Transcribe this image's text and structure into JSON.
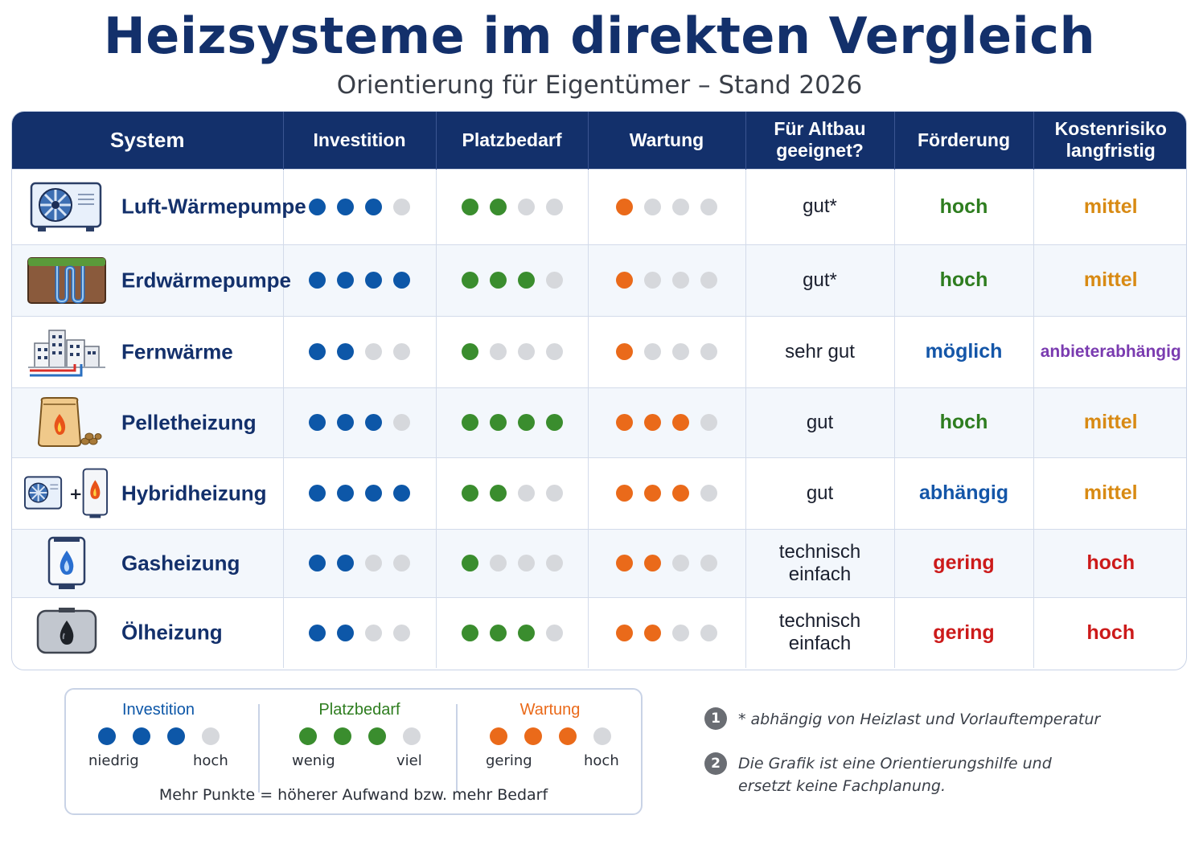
{
  "title": "Heizsysteme im direkten Vergleich",
  "subtitle": "Orientierung für Eigentümer – Stand 2026",
  "colors": {
    "header": "#13306b",
    "investition": "#0d57a8",
    "platzbedarf": "#3a8d2e",
    "wartung": "#ea6a1a",
    "inactive": "#d6d8dc",
    "hoch_green": "#2e7d1f",
    "mittel": "#d88a13",
    "moeglich": "#1456a8",
    "anbieter": "#7a3bb0",
    "red": "#cc1a1a"
  },
  "headers": {
    "system": "System",
    "investition": "Investition",
    "platzbedarf": "Platzbedarf",
    "wartung": "Wartung",
    "altbau": "Für Altbau geeignet?",
    "foerderung": "Förderung",
    "kostenrisiko": "Kostenrisiko langfristig"
  },
  "chart_data": {
    "type": "table",
    "dot_scale_max": 4,
    "rows": [
      {
        "system": "Luft-Wärmepumpe",
        "icon": "air-heat-pump-icon",
        "investition": 3,
        "platzbedarf": 2,
        "wartung": 1,
        "altbau": "gut*",
        "foerderung": "hoch",
        "foerderung_color": "#2e7d1f",
        "kostenrisiko": "mittel",
        "kostenrisiko_color": "#d88a13"
      },
      {
        "system": "Erdwärmepumpe",
        "icon": "ground-heat-pump-icon",
        "investition": 4,
        "platzbedarf": 3,
        "wartung": 1,
        "altbau": "gut*",
        "foerderung": "hoch",
        "foerderung_color": "#2e7d1f",
        "kostenrisiko": "mittel",
        "kostenrisiko_color": "#d88a13"
      },
      {
        "system": "Fernwärme",
        "icon": "district-heating-icon",
        "investition": 2,
        "platzbedarf": 1,
        "wartung": 1,
        "altbau": "sehr gut",
        "foerderung": "möglich",
        "foerderung_color": "#1456a8",
        "kostenrisiko": "anbieterabhängig",
        "kostenrisiko_color": "#7a3bb0"
      },
      {
        "system": "Pelletheizung",
        "icon": "pellet-heating-icon",
        "investition": 3,
        "platzbedarf": 4,
        "wartung": 3,
        "altbau": "gut",
        "foerderung": "hoch",
        "foerderung_color": "#2e7d1f",
        "kostenrisiko": "mittel",
        "kostenrisiko_color": "#d88a13"
      },
      {
        "system": "Hybridheizung",
        "icon": "hybrid-heating-icon",
        "investition": 4,
        "platzbedarf": 2,
        "wartung": 3,
        "altbau": "gut",
        "foerderung": "abhängig",
        "foerderung_color": "#1456a8",
        "kostenrisiko": "mittel",
        "kostenrisiko_color": "#d88a13"
      },
      {
        "system": "Gasheizung",
        "icon": "gas-heating-icon",
        "investition": 2,
        "platzbedarf": 1,
        "wartung": 2,
        "altbau": "technisch einfach",
        "foerderung": "gering",
        "foerderung_color": "#cc1a1a",
        "kostenrisiko": "hoch",
        "kostenrisiko_color": "#cc1a1a"
      },
      {
        "system": "Ölheizung",
        "icon": "oil-heating-icon",
        "investition": 2,
        "platzbedarf": 3,
        "wartung": 2,
        "altbau": "technisch einfach",
        "foerderung": "gering",
        "foerderung_color": "#cc1a1a",
        "kostenrisiko": "hoch",
        "kostenrisiko_color": "#cc1a1a"
      }
    ]
  },
  "legend": {
    "investition": {
      "title": "Investition",
      "low": "niedrig",
      "high": "hoch",
      "filled": 3
    },
    "platzbedarf": {
      "title": "Platzbedarf",
      "low": "wenig",
      "high": "viel",
      "filled": 3
    },
    "wartung": {
      "title": "Wartung",
      "low": "gering",
      "high": "hoch",
      "filled": 3
    },
    "note": "Mehr Punkte = höherer Aufwand bzw. mehr Bedarf"
  },
  "footnotes": [
    {
      "number": "1",
      "text_line1": "* abhängig von Heizlast und Vorlauftemperatur",
      "text_line2": ""
    },
    {
      "number": "2",
      "text_line1": "Die Grafik ist eine Orientierungshilfe und",
      "text_line2": "ersetzt keine Fachplanung."
    }
  ]
}
